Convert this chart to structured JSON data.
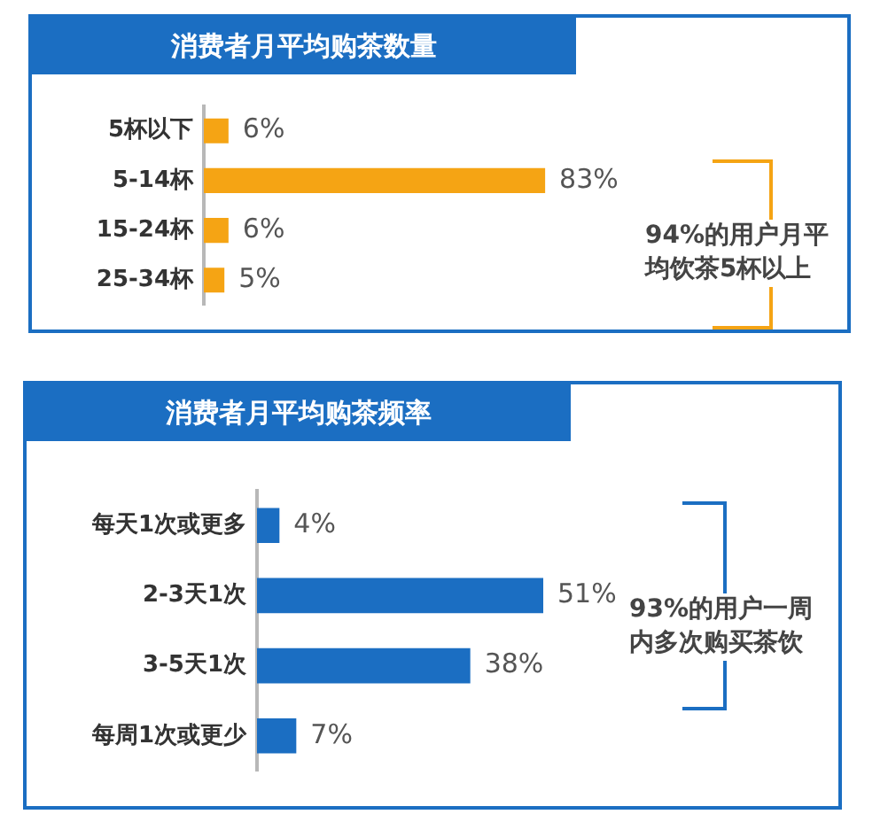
{
  "chart_data": [
    {
      "type": "bar",
      "orientation": "horizontal",
      "title": "消费者月平均购茶数量",
      "categories": [
        "5杯以下",
        "5-14杯",
        "15-24杯",
        "25-34杯"
      ],
      "series": [
        {
          "color": "#f5a414",
          "values": [
            6,
            83,
            6,
            5
          ],
          "value_labels": [
            "6%",
            "83%",
            "6%",
            "5%"
          ]
        }
      ],
      "tick_labels": "y",
      "annotations": [
        "94%的用户月平均饮茶5杯以上"
      ]
    },
    {
      "type": "bar",
      "orientation": "horizontal",
      "title": "消费者月平均购茶频率",
      "categories": [
        "每天1次或更多",
        "2-3天1次",
        "3-5天1次",
        "每周1次或更少"
      ],
      "series": [
        {
          "color": "#1b6ec2",
          "values": [
            4,
            51,
            38,
            7
          ],
          "value_labels": [
            "4%",
            "51%",
            "38%",
            "7%"
          ]
        }
      ],
      "tick_labels": "y",
      "annotations": [
        "93%的用户一周内多次购买茶饮"
      ]
    }
  ]
}
